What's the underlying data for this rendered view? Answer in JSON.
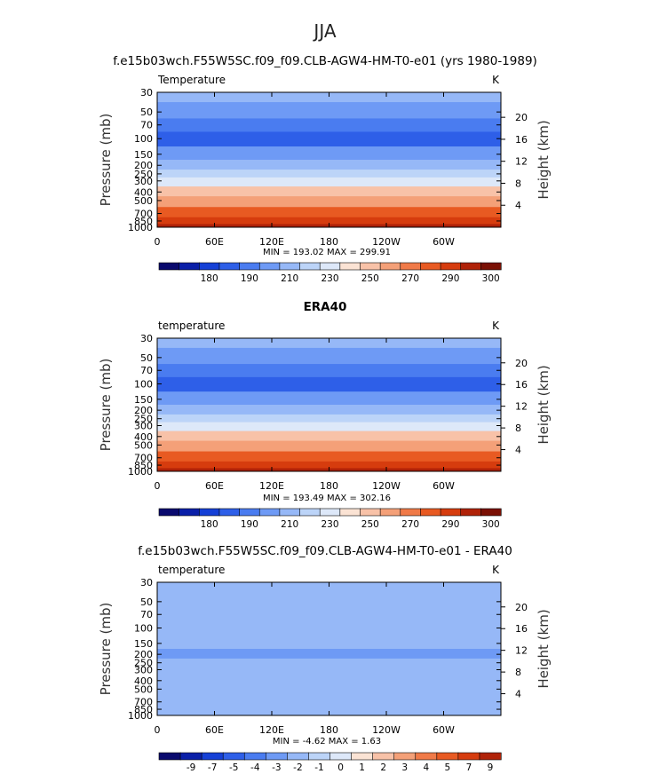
{
  "suptitle": "JJA",
  "chart_data": [
    {
      "type": "heatmap",
      "title": "f.e15b03wch.F55W5SC.f09_f09.CLB-AGW4-HM-T0-e01 (yrs 1980-1989)",
      "variable": "Temperature",
      "units": "K",
      "ylabel": "Pressure  (mb)",
      "y2label": "Height  (km)",
      "y_ticks": [
        30,
        50,
        70,
        100,
        150,
        200,
        250,
        300,
        400,
        500,
        700,
        850,
        1000
      ],
      "y2_ticks": [
        4,
        8,
        12,
        16,
        20
      ],
      "x_ticks": [
        "0",
        "60E",
        "120E",
        "180",
        "120W",
        "60W"
      ],
      "stats_text": "MIN = 193.02   MAX = 299.91",
      "colorbar_labels": [
        "180",
        "190",
        "210",
        "230",
        "250",
        "270",
        "290",
        "300"
      ],
      "colorbar_colors": [
        "#0a0a6e",
        "#0a1fa8",
        "#1540d6",
        "#2e5fe8",
        "#4a7cf0",
        "#6e9af5",
        "#96b8f7",
        "#bcd4f8",
        "#dde8f9",
        "#fbe3d4",
        "#f8c2a8",
        "#f4a078",
        "#f07a48",
        "#e85a22",
        "#d63c0e",
        "#b02208",
        "#7a1004"
      ],
      "profile": [
        {
          "p": 30,
          "temp": 226
        },
        {
          "p": 50,
          "temp": 218
        },
        {
          "p": 70,
          "temp": 208
        },
        {
          "p": 100,
          "temp": 202
        },
        {
          "p": 150,
          "temp": 212
        },
        {
          "p": 200,
          "temp": 220
        },
        {
          "p": 250,
          "temp": 228
        },
        {
          "p": 300,
          "temp": 238
        },
        {
          "p": 400,
          "temp": 252
        },
        {
          "p": 500,
          "temp": 262
        },
        {
          "p": 700,
          "temp": 278
        },
        {
          "p": 850,
          "temp": 288
        },
        {
          "p": 1000,
          "temp": 296
        }
      ]
    },
    {
      "type": "heatmap",
      "title": "ERA40",
      "variable": "temperature",
      "units": "K",
      "ylabel": "Pressure  (mb)",
      "y2label": "Height  (km)",
      "y_ticks": [
        30,
        50,
        70,
        100,
        150,
        200,
        250,
        300,
        400,
        500,
        700,
        850,
        1000
      ],
      "y2_ticks": [
        4,
        8,
        12,
        16,
        20
      ],
      "x_ticks": [
        "0",
        "60E",
        "120E",
        "180",
        "120W",
        "60W"
      ],
      "stats_text": "MIN = 193.49   MAX = 302.16",
      "colorbar_labels": [
        "180",
        "190",
        "210",
        "230",
        "250",
        "270",
        "290",
        "300"
      ],
      "colorbar_colors": [
        "#0a0a6e",
        "#0a1fa8",
        "#1540d6",
        "#2e5fe8",
        "#4a7cf0",
        "#6e9af5",
        "#96b8f7",
        "#bcd4f8",
        "#dde8f9",
        "#fbe3d4",
        "#f8c2a8",
        "#f4a078",
        "#f07a48",
        "#e85a22",
        "#d63c0e",
        "#b02208",
        "#7a1004"
      ],
      "profile": [
        {
          "p": 30,
          "temp": 226
        },
        {
          "p": 50,
          "temp": 218
        },
        {
          "p": 70,
          "temp": 208
        },
        {
          "p": 100,
          "temp": 202
        },
        {
          "p": 150,
          "temp": 212
        },
        {
          "p": 200,
          "temp": 220
        },
        {
          "p": 250,
          "temp": 228
        },
        {
          "p": 300,
          "temp": 238
        },
        {
          "p": 400,
          "temp": 252
        },
        {
          "p": 500,
          "temp": 262
        },
        {
          "p": 700,
          "temp": 278
        },
        {
          "p": 850,
          "temp": 290
        },
        {
          "p": 1000,
          "temp": 298
        }
      ]
    },
    {
      "type": "heatmap",
      "title": "f.e15b03wch.F55W5SC.f09_f09.CLB-AGW4-HM-T0-e01 - ERA40",
      "variable": "temperature",
      "units": "K",
      "ylabel": "Pressure  (mb)",
      "y2label": "Height  (km)",
      "y_ticks": [
        30,
        50,
        70,
        100,
        150,
        200,
        250,
        300,
        400,
        500,
        700,
        850,
        1000
      ],
      "y2_ticks": [
        4,
        8,
        12,
        16,
        20
      ],
      "x_ticks": [
        "0",
        "60E",
        "120E",
        "180",
        "120W",
        "60W"
      ],
      "stats_text": "MIN =   -4.62   MAX =    1.63",
      "colorbar_labels": [
        "-9",
        "-7",
        "-5",
        "-4",
        "-3",
        "-2",
        "-1",
        "0",
        "1",
        "2",
        "3",
        "4",
        "5",
        "7",
        "9"
      ],
      "colorbar_colors": [
        "#0a0a6e",
        "#0a1fa8",
        "#1540d6",
        "#2e5fe8",
        "#4a7cf0",
        "#6e9af5",
        "#96b8f7",
        "#bcd4f8",
        "#dde8f9",
        "#fbe3d4",
        "#f8c2a8",
        "#f4a078",
        "#f07a48",
        "#e85a22",
        "#d63c0e",
        "#b02208"
      ],
      "profile": [
        {
          "p": 30,
          "temp": -1.5
        },
        {
          "p": 50,
          "temp": -1.5
        },
        {
          "p": 70,
          "temp": -1.5
        },
        {
          "p": 100,
          "temp": -2.5
        },
        {
          "p": 150,
          "temp": -2.5
        },
        {
          "p": 200,
          "temp": -3.5
        },
        {
          "p": 250,
          "temp": -2.5
        },
        {
          "p": 300,
          "temp": -2.5
        },
        {
          "p": 400,
          "temp": -1.5
        },
        {
          "p": 500,
          "temp": -1.5
        },
        {
          "p": 700,
          "temp": -1.5
        },
        {
          "p": 850,
          "temp": -2.5
        },
        {
          "p": 1000,
          "temp": -2.5
        }
      ]
    }
  ]
}
